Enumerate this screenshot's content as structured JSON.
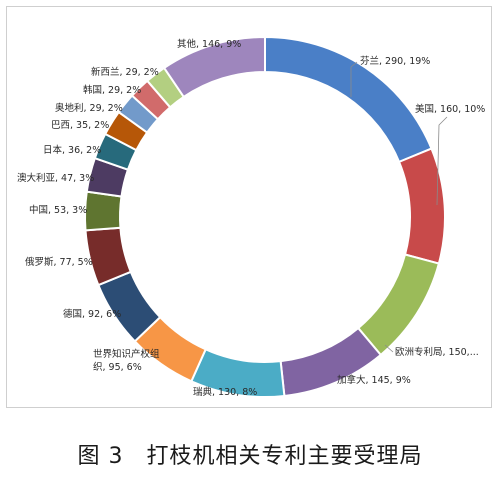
{
  "caption": "图 3　打枝机相关专利主要受理局",
  "chart_data": {
    "type": "pie",
    "variant": "donut",
    "start": "top",
    "direction": "clockwise",
    "slices": [
      {
        "name": "芬兰",
        "value": 290,
        "percent": "19%",
        "label": "芬兰, 290, 19%",
        "color": "#4a7fc7"
      },
      {
        "name": "美国",
        "value": 160,
        "percent": "10%",
        "label": "美国, 160, 10%",
        "color": "#c84a4a"
      },
      {
        "name": "欧洲专利局",
        "value": 150,
        "percent": "",
        "label": "欧洲专利局, 150,...",
        "color": "#9bbb59"
      },
      {
        "name": "加拿大",
        "value": 145,
        "percent": "9%",
        "label": "加拿大, 145, 9%",
        "color": "#8064a2"
      },
      {
        "name": "瑞典",
        "value": 130,
        "percent": "8%",
        "label": "瑞典, 130, 8%",
        "color": "#4bacc6"
      },
      {
        "name": "世界知识产权组织",
        "value": 95,
        "percent": "6%",
        "label": "世界知识产权组\n织, 95, 6%",
        "color": "#f79646"
      },
      {
        "name": "德国",
        "value": 92,
        "percent": "6%",
        "label": "德国, 92, 6%",
        "color": "#2c4d75"
      },
      {
        "name": "俄罗斯",
        "value": 77,
        "percent": "5%",
        "label": "俄罗斯, 77, 5%",
        "color": "#772c2a"
      },
      {
        "name": "中国",
        "value": 53,
        "percent": "3%",
        "label": "中国, 53, 3%",
        "color": "#5f7530"
      },
      {
        "name": "澳大利亚",
        "value": 47,
        "percent": "3%",
        "label": "澳大利亚, 47, 3%",
        "color": "#4d3b62"
      },
      {
        "name": "日本",
        "value": 36,
        "percent": "2%",
        "label": "日本, 36, 2%",
        "color": "#276a7c"
      },
      {
        "name": "巴西",
        "value": 35,
        "percent": "2%",
        "label": "巴西, 35, 2%",
        "color": "#b65708"
      },
      {
        "name": "奥地利",
        "value": 29,
        "percent": "2%",
        "label": "奥地利, 29, 2%",
        "color": "#729aca"
      },
      {
        "name": "韩国",
        "value": 29,
        "percent": "2%",
        "label": "韩国, 29, 2%",
        "color": "#d16b6b"
      },
      {
        "name": "新西兰",
        "value": 29,
        "percent": "2%",
        "label": "新西兰, 29, 2%",
        "color": "#b3cf81"
      },
      {
        "name": "其他",
        "value": 146,
        "percent": "9%",
        "label": "其他, 146, 9%",
        "color": "#9e86bd"
      }
    ]
  }
}
